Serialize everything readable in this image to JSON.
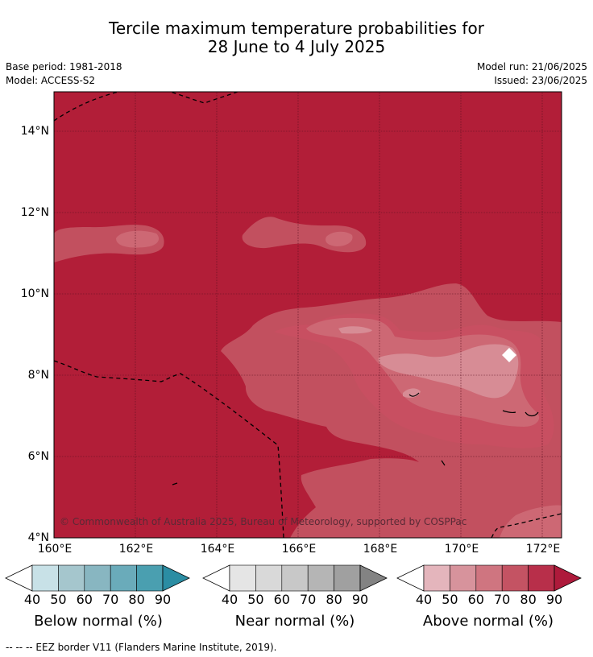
{
  "title": {
    "line1": "Tercile maximum temperature probabilities for",
    "line2": "28 June to 4 July 2025"
  },
  "meta": {
    "base_period": "Base period: 1981-2018",
    "model": "Model: ACCESS-S2",
    "model_run": "Model run: 21/06/2025",
    "issued": "Issued: 23/06/2025"
  },
  "map": {
    "lat_labels": [
      "14°N",
      "12°N",
      "10°N",
      "8°N",
      "6°N",
      "4°N"
    ],
    "lon_labels": [
      "160°E",
      "162°E",
      "164°E",
      "166°E",
      "168°E",
      "170°E",
      "172°E"
    ],
    "copyright": "© Commonwealth of Australia 2025, Bureau of Meteorology, supported by COSPPac",
    "colors": {
      "background": "#b21e38",
      "level_60_70": "#cd6874",
      "level_70_80": "#c2505f",
      "level_50_60": "#d78c95",
      "border": "#000000"
    }
  },
  "colorbars": [
    {
      "title": "Below normal (%)",
      "ticks": [
        "40",
        "50",
        "60",
        "70",
        "80",
        "90"
      ],
      "colors": [
        "#c8e1e7",
        "#a5c6cd",
        "#88b6c1",
        "#6aabba",
        "#4a9fb0",
        "#2b8da3"
      ]
    },
    {
      "title": "Near normal (%)",
      "ticks": [
        "40",
        "50",
        "60",
        "70",
        "80",
        "90"
      ],
      "colors": [
        "#e5e5e5",
        "#d9d9d9",
        "#c8c8c8",
        "#b5b5b5",
        "#a0a0a0",
        "#838383"
      ]
    },
    {
      "title": "Above normal (%)",
      "ticks": [
        "40",
        "50",
        "60",
        "70",
        "80",
        "90"
      ],
      "colors": [
        "#e4b5bc",
        "#d7939c",
        "#cf7580",
        "#c45363",
        "#b82f4a",
        "#ae1a3b"
      ]
    }
  ],
  "footer": "--  --  -- EEZ border V11 (Flanders Marine Institute, 2019)."
}
